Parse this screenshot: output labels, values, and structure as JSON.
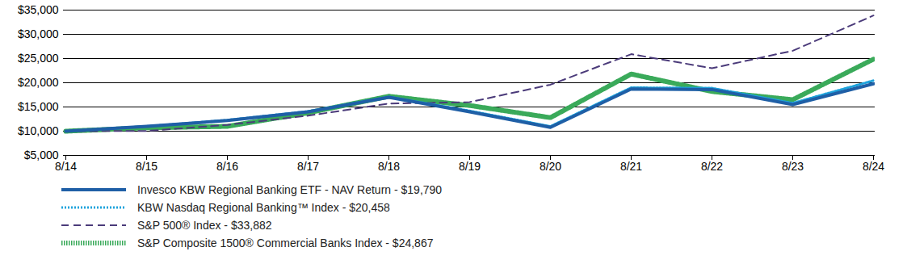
{
  "chart_data": {
    "type": "line",
    "x": [
      "8/14",
      "8/15",
      "8/16",
      "8/17",
      "8/18",
      "8/19",
      "8/20",
      "8/21",
      "8/22",
      "8/23",
      "8/24"
    ],
    "series": [
      {
        "name": "Invesco KBW Regional Banking ETF - NAV Return - $19,790",
        "color": "#1f5fa6",
        "line_style": "solid",
        "values": [
          10000,
          11000,
          12200,
          14000,
          17000,
          14000,
          10800,
          18700,
          18600,
          15500,
          19790
        ]
      },
      {
        "name": "KBW Nasdaq Regional Banking™ Index - $20,458",
        "color": "#1ea3dc",
        "line_style": "dotted",
        "values": [
          10000,
          11000,
          12300,
          14100,
          17100,
          14200,
          11000,
          19000,
          18900,
          15800,
          20458
        ]
      },
      {
        "name": "S&P 500® Index - $33,882",
        "color": "#4b3b7a",
        "line_style": "dashed",
        "values": [
          10000,
          10050,
          11300,
          13200,
          15700,
          16000,
          19600,
          25900,
          23000,
          26600,
          33882
        ]
      },
      {
        "name": "S&P Composite 1500® Commercial Banks Index - $24,867",
        "color": "#3aaa5a",
        "line_style": "dotted",
        "values": [
          10000,
          10700,
          11000,
          13800,
          17200,
          15300,
          12800,
          21800,
          18200,
          16500,
          24867
        ]
      }
    ],
    "ylim": [
      5000,
      35000
    ],
    "yticks": [
      {
        "value": 5000,
        "label": "$5,000"
      },
      {
        "value": 10000,
        "label": "$10,000"
      },
      {
        "value": 15000,
        "label": "$15,000"
      },
      {
        "value": 20000,
        "label": "$20,000"
      },
      {
        "value": 25000,
        "label": "$25,000"
      },
      {
        "value": 30000,
        "label": "$30,000"
      },
      {
        "value": 35000,
        "label": "$35,000"
      }
    ],
    "grid": true,
    "legend": "bottom"
  }
}
